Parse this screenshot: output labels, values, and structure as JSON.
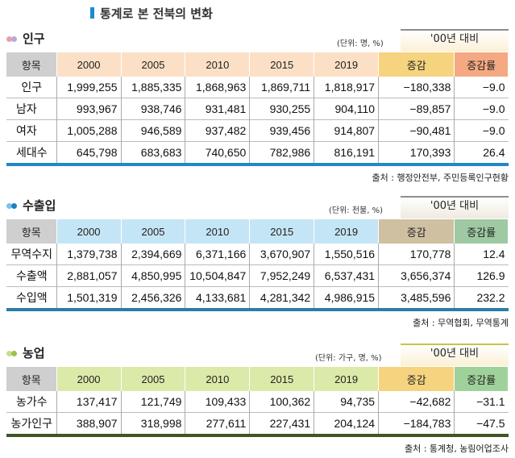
{
  "page_title": "통계로 본 전북의 변화",
  "sections": [
    {
      "title": "인구",
      "unit": "(단위: 명, %)",
      "compare_label": "'00년 대비",
      "headers": [
        "항목",
        "2000",
        "2005",
        "2010",
        "2015",
        "2019",
        "증감",
        "증감률"
      ],
      "rows": [
        {
          "label": "인구",
          "values": [
            "1,999,255",
            "1,885,335",
            "1,868,963",
            "1,869,711",
            "1,818,917",
            "−180,338",
            "−9.0"
          ]
        },
        {
          "label": "남자",
          "values": [
            "993,967",
            "938,746",
            "931,481",
            "930,255",
            "904,110",
            "−89,857",
            "−9.0"
          ]
        },
        {
          "label": "여자",
          "values": [
            "1,005,288",
            "946,589",
            "937,482",
            "939,456",
            "914,807",
            "−90,481",
            "−9.0"
          ]
        },
        {
          "label": "세대수",
          "values": [
            "645,798",
            "683,683",
            "740,650",
            "782,986",
            "816,191",
            "170,393",
            "26.4"
          ]
        }
      ],
      "source": "출처 : 행정안전부, 주민등록인구현황",
      "colors": {
        "label_bg": "#cfcfcf",
        "year_bg": "#fbe0c6",
        "change_bg": "#f5d37f",
        "rate_bg": "#f4a983",
        "base": "#1f88c8",
        "dot_a": "#e9a0b0",
        "dot_b": "#b9a9d6",
        "compare_line": "#8e8e8e"
      }
    },
    {
      "title": "수출입",
      "unit": "(단위: 천불, %)",
      "compare_label": "'00년 대비",
      "headers": [
        "항목",
        "2000",
        "2005",
        "2010",
        "2015",
        "2019",
        "증감",
        "증감률"
      ],
      "rows": [
        {
          "label": "무역수지",
          "values": [
            "1,379,738",
            "2,394,669",
            "6,371,166",
            "3,670,907",
            "1,550,516",
            "170,778",
            "12.4"
          ]
        },
        {
          "label": "수출액",
          "values": [
            "2,881,057",
            "4,850,995",
            "10,504,847",
            "7,952,249",
            "6,537,431",
            "3,656,374",
            "126.9"
          ]
        },
        {
          "label": "수입액",
          "values": [
            "1,501,319",
            "2,456,326",
            "4,133,681",
            "4,281,342",
            "4,986,915",
            "3,485,596",
            "232.2"
          ]
        }
      ],
      "source": "출처 : 무역협회, 무역통계",
      "colors": {
        "label_bg": "#cfcfcf",
        "year_bg": "#c4e5f5",
        "change_bg": "#cfc0a2",
        "rate_bg": "#9fc9a2",
        "base": "#2a7ea4",
        "dot_a": "#7cc3e6",
        "dot_b": "#1f7fc0",
        "compare_line": "#8e8e8e"
      }
    },
    {
      "title": "농업",
      "unit": "(단위: 가구, 명, %)",
      "compare_label": "'00년 대비",
      "headers": [
        "항목",
        "2000",
        "2005",
        "2010",
        "2015",
        "2019",
        "증감",
        "증감률"
      ],
      "rows": [
        {
          "label": "농가수",
          "values": [
            "137,417",
            "121,749",
            "109,433",
            "100,362",
            "94,735",
            "−42,682",
            "−31.1"
          ]
        },
        {
          "label": "농가인구",
          "values": [
            "388,907",
            "318,998",
            "277,611",
            "227,431",
            "204,124",
            "−184,783",
            "−47.5"
          ]
        }
      ],
      "source": "출처 : 통계청, 농림어업조사",
      "colors": {
        "label_bg": "#cfcfcf",
        "year_bg": "#dbe9a9",
        "change_bg": "#f5d37f",
        "rate_bg": "#9fd29a",
        "base": "#3f5526",
        "dot_a": "#c8dd8c",
        "dot_b": "#9bc14c",
        "compare_line": "#c5c34d"
      }
    }
  ]
}
